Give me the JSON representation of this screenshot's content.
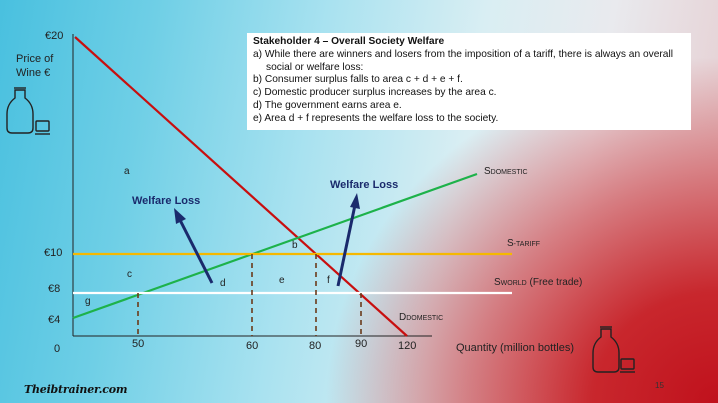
{
  "info_box": {
    "title": "Stakeholder 4 – Overall Society Welfare",
    "items": [
      {
        "marker": "a)",
        "text": "While there are winners and losers from the imposition of a tariff, there is always an overall social or welfare loss:"
      },
      {
        "marker": "b)",
        "text": "Consumer surplus falls to area c + d + e + f."
      },
      {
        "marker": "c)",
        "text": "Domestic producer surplus increases by the area c."
      },
      {
        "marker": "d)",
        "text": "The government earns area e."
      },
      {
        "marker": "e)",
        "text": "Area d + f represents the welfare loss to the society."
      }
    ]
  },
  "diagram": {
    "y_axis_label": [
      "Price of",
      "Wine €"
    ],
    "x_axis_label": "Quantity (million bottles)",
    "origin_label": "0",
    "y_ticks": [
      {
        "value": 20,
        "label": "€20"
      },
      {
        "value": 10,
        "label": "€10"
      },
      {
        "value": 8,
        "label": "€8"
      },
      {
        "value": 4,
        "label": "€4"
      }
    ],
    "x_ticks": [
      {
        "value": 50,
        "label": "50"
      },
      {
        "value": 60,
        "label": "60"
      },
      {
        "value": 80,
        "label": "80"
      },
      {
        "value": 90,
        "label": "90"
      },
      {
        "value": 120,
        "label": "120"
      }
    ],
    "curves": {
      "s_domestic": {
        "label_main": "S",
        "label_sub": "DOMESTIC",
        "color": "#1db24a"
      },
      "s_tariff": {
        "label_main": "S",
        "label_sub": "TARIFF",
        "color": "#f5b800"
      },
      "s_world": {
        "label_main": "S",
        "label_sub": "WORLD",
        "label_suffix": " (Free trade)",
        "color": "#ffffff"
      },
      "d_domestic": {
        "label_main": "D",
        "label_sub": "DOMESTIC",
        "color": "#c80f0f"
      }
    },
    "area_labels": {
      "a": "a",
      "b": "b",
      "c": "c",
      "d": "d",
      "e": "e",
      "f": "f",
      "g": "g"
    },
    "arrows": {
      "left_label": "Welfare Loss",
      "right_label": "Welfare Loss",
      "color": "#1a2a6c"
    }
  },
  "footer": {
    "logo": "Theibtrainer.com",
    "page_number": "15"
  }
}
